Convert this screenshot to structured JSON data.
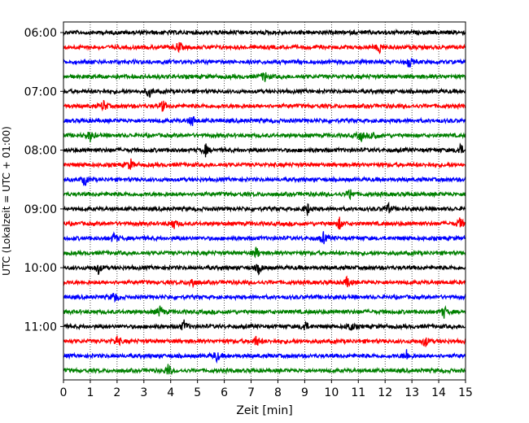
{
  "chart_data": {
    "type": "line",
    "title": "",
    "xlabel": "Zeit  [min]",
    "ylabel": "UTC (Lokalzeit = UTC + 01:00)",
    "xlim": [
      0,
      15
    ],
    "x_ticks": [
      "0",
      "1",
      "2",
      "3",
      "4",
      "5",
      "6",
      "7",
      "8",
      "9",
      "10",
      "11",
      "12",
      "13",
      "14",
      "15"
    ],
    "y_ticks": [
      "06:00",
      "07:00",
      "08:00",
      "09:00",
      "10:00",
      "11:00"
    ],
    "grid": "vertical dotted lines at each minute",
    "trace_interval_min": 15,
    "colors_cycle": [
      "#000000",
      "#ff0000",
      "#0000ff",
      "#008000"
    ],
    "series": [
      {
        "start": "06:00",
        "color": "#000000",
        "events": []
      },
      {
        "start": "06:15",
        "color": "#ff0000",
        "events": [
          4.3,
          11.8
        ]
      },
      {
        "start": "06:30",
        "color": "#0000ff",
        "events": [
          12.9
        ]
      },
      {
        "start": "06:45",
        "color": "#008000",
        "events": [
          7.5
        ]
      },
      {
        "start": "07:00",
        "color": "#000000",
        "events": [
          3.2
        ]
      },
      {
        "start": "07:15",
        "color": "#ff0000",
        "events": [
          1.5,
          3.7
        ]
      },
      {
        "start": "07:30",
        "color": "#0000ff",
        "events": [
          4.8
        ]
      },
      {
        "start": "07:45",
        "color": "#008000",
        "events": [
          1.0,
          11.1,
          11.6
        ]
      },
      {
        "start": "08:00",
        "color": "#000000",
        "events": [
          5.3,
          14.8
        ]
      },
      {
        "start": "08:15",
        "color": "#ff0000",
        "events": [
          2.5
        ]
      },
      {
        "start": "08:30",
        "color": "#0000ff",
        "events": [
          0.8
        ]
      },
      {
        "start": "08:45",
        "color": "#008000",
        "events": [
          10.7
        ]
      },
      {
        "start": "09:00",
        "color": "#000000",
        "events": [
          9.1,
          12.1
        ]
      },
      {
        "start": "09:15",
        "color": "#ff0000",
        "events": [
          4.1,
          10.3,
          14.8
        ]
      },
      {
        "start": "09:30",
        "color": "#0000ff",
        "events": [
          1.9,
          9.7
        ]
      },
      {
        "start": "09:45",
        "color": "#008000",
        "events": [
          7.2
        ]
      },
      {
        "start": "10:00",
        "color": "#000000",
        "events": [
          1.3,
          7.3
        ]
      },
      {
        "start": "10:15",
        "color": "#ff0000",
        "events": [
          4.8,
          10.6
        ]
      },
      {
        "start": "10:30",
        "color": "#0000ff",
        "events": [
          1.9
        ]
      },
      {
        "start": "10:45",
        "color": "#008000",
        "events": [
          3.6,
          14.2
        ]
      },
      {
        "start": "11:00",
        "color": "#000000",
        "events": [
          4.5,
          9.0,
          10.7
        ]
      },
      {
        "start": "11:15",
        "color": "#ff0000",
        "events": [
          2.0,
          7.2,
          13.5
        ]
      },
      {
        "start": "11:30",
        "color": "#0000ff",
        "events": [
          5.7,
          12.8
        ]
      },
      {
        "start": "11:45",
        "color": "#008000",
        "events": [
          3.9
        ]
      }
    ]
  }
}
